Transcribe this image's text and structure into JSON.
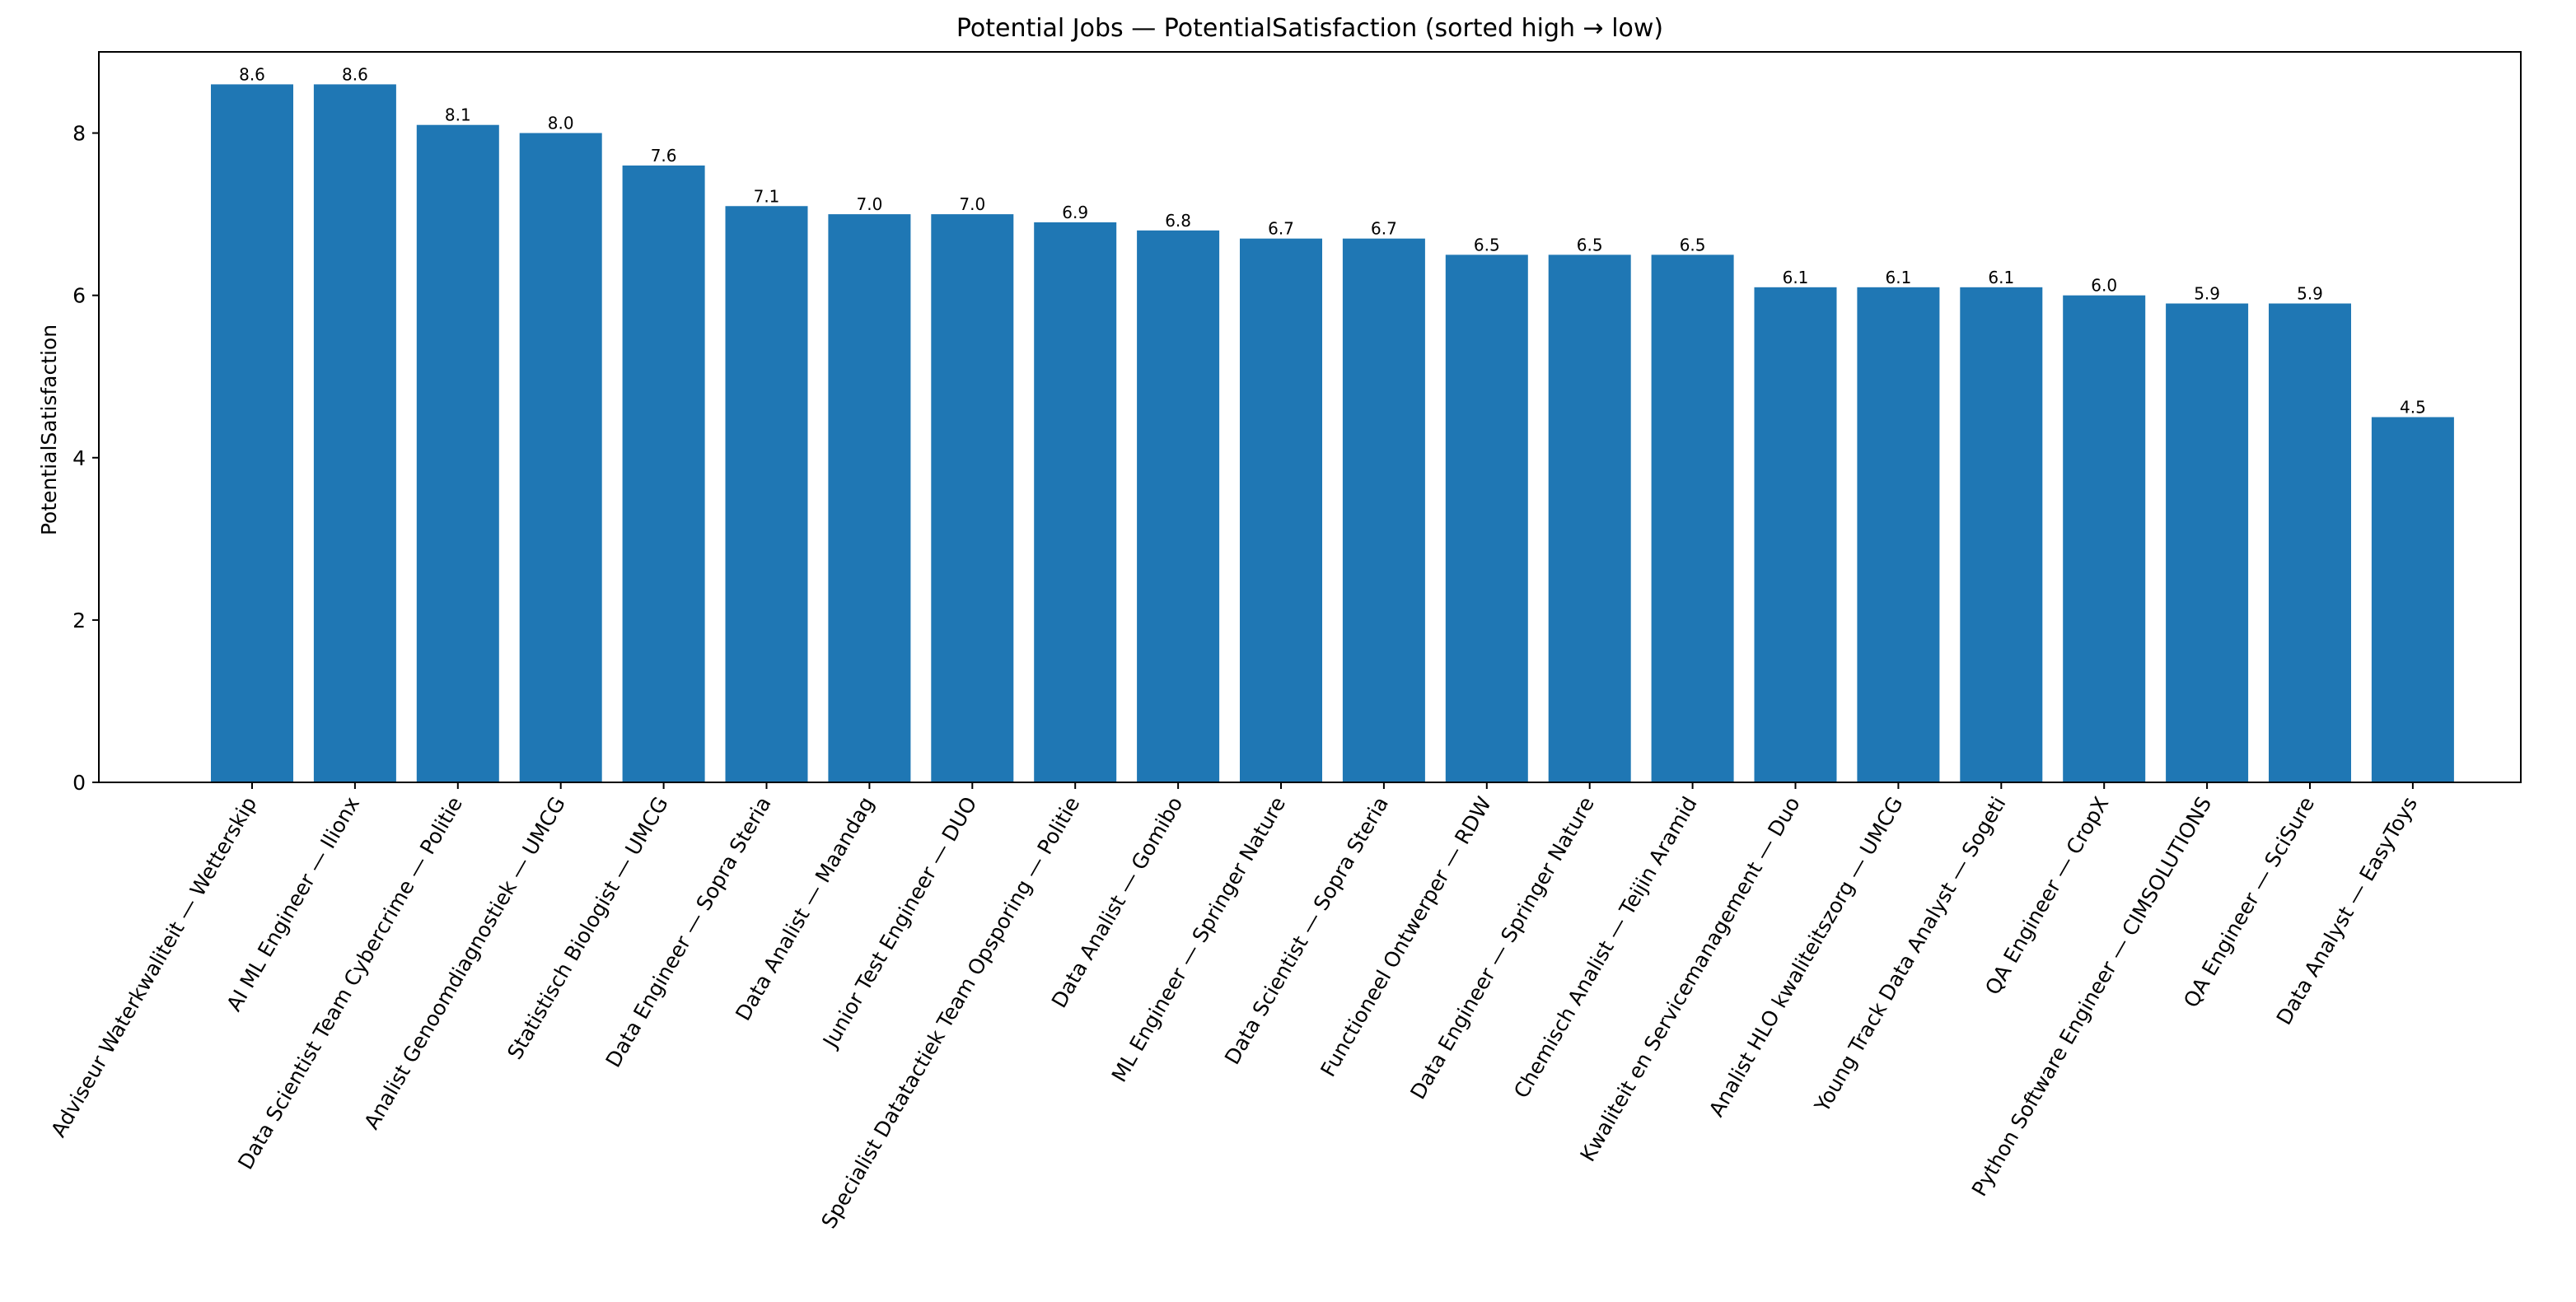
{
  "chart_data": {
    "type": "bar",
    "title": "Potential Jobs — PotentialSatisfaction (sorted high → low)",
    "xlabel": "",
    "ylabel": "PotentialSatisfaction",
    "ylim": [
      0,
      9
    ],
    "yticks": [
      0,
      2,
      4,
      6,
      8
    ],
    "grid": false,
    "bar_color": "#1f77b4",
    "categories": [
      "Adviseur Waterkwaliteit — Wetterskip",
      "AI ML Engineer — Ilionx",
      "Data Scientist Team Cybercrime — Politie",
      "Analist Genoomdiagnostiek — UMCG",
      "Statistisch Biologist — UMCG",
      "Data Engineer — Sopra Steria",
      "Data Analist — Maandag",
      "Junior Test Engineer — DUO",
      "Specialist Datatactiek Team Opsporing — Politie",
      "Data Analist — Gomibo",
      "ML Engineer — Springer Nature",
      "Data Scientist — Sopra Steria",
      "Functioneel Ontwerper — RDW",
      "Data Engineer — Springer Nature",
      "Chemisch Analist — Teijin Aramid",
      "Kwaliteit en Servicemanagement — Duo",
      "Analist HLO kwaliteitszorg — UMCG",
      "Young Track Data Analyst — Sogeti",
      "QA Engineer — CropX",
      "Python Software Engineer — CIMSOLUTIONS",
      "QA Engineer — SciSure",
      "Data Analyst — EasyToys"
    ],
    "values": [
      8.6,
      8.6,
      8.1,
      8.0,
      7.6,
      7.1,
      7.0,
      7.0,
      6.9,
      6.8,
      6.7,
      6.7,
      6.5,
      6.5,
      6.5,
      6.1,
      6.1,
      6.1,
      6.0,
      5.9,
      5.9,
      4.5
    ],
    "value_labels": [
      "8.6",
      "8.6",
      "8.1",
      "8.0",
      "7.6",
      "7.1",
      "7.0",
      "7.0",
      "6.9",
      "6.8",
      "6.7",
      "6.7",
      "6.5",
      "6.5",
      "6.5",
      "6.1",
      "6.1",
      "6.1",
      "6.0",
      "5.9",
      "5.9",
      "4.5"
    ]
  }
}
